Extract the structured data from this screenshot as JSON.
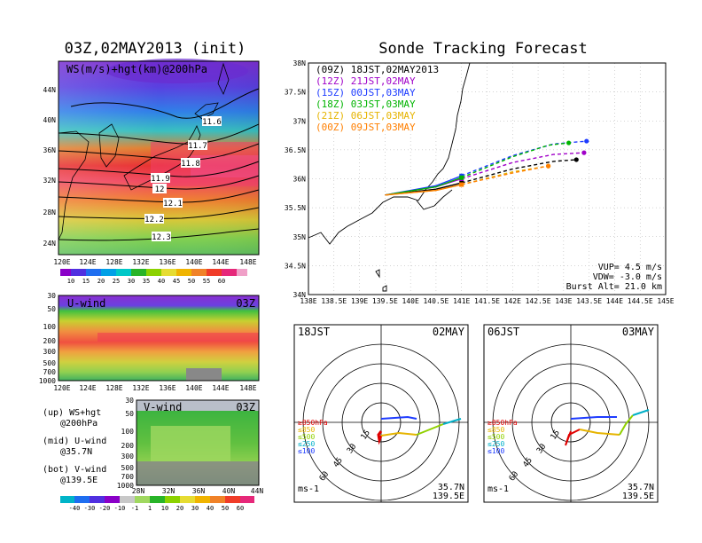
{
  "left_title": "03Z,02MAY2013 (init)",
  "right_title": "Sonde Tracking Forecast",
  "map_panel": {
    "label": "WS(m/s)+hgt(km)@200hPa",
    "lat_ticks": [
      "44N",
      "40N",
      "36N",
      "32N",
      "28N",
      "24N"
    ],
    "lon_ticks": [
      "120E",
      "124E",
      "128E",
      "132E",
      "136E",
      "140E",
      "144E",
      "148E"
    ],
    "contour_labels": [
      "11.6",
      "11.7",
      "11.8",
      "11.9",
      "12",
      "12.1",
      "12.2",
      "12.3"
    ],
    "colorbar_ticks": [
      "10",
      "15",
      "20",
      "25",
      "30",
      "35",
      "40",
      "45",
      "50",
      "55",
      "60"
    ]
  },
  "u_panel": {
    "label": "U-wind",
    "time": "03Z",
    "p_ticks": [
      "30",
      "50",
      "100",
      "200",
      "300",
      "500",
      "700",
      "1000"
    ],
    "lon_ticks": [
      "120E",
      "124E",
      "128E",
      "132E",
      "136E",
      "140E",
      "144E",
      "148E"
    ]
  },
  "v_panel": {
    "label": "V-wind",
    "time": "03Z",
    "p_ticks": [
      "30",
      "50",
      "100",
      "200",
      "300",
      "500",
      "700",
      "1000"
    ],
    "lat_ticks": [
      "28N",
      "32N",
      "36N",
      "40N",
      "44N"
    ],
    "colorbar_ticks": [
      "-40",
      "-30",
      "-20",
      "-10",
      "-1",
      "1",
      "10",
      "20",
      "30",
      "40",
      "50",
      "60"
    ]
  },
  "notes": [
    {
      "a": "(up) WS+hgt",
      "b": "@200hPa"
    },
    {
      "a": "(mid) U-wind",
      "b": "@35.7N"
    },
    {
      "a": "(bot) V-wind",
      "b": "@139.5E"
    }
  ],
  "track_map": {
    "lat_ticks": [
      "38N",
      "37.5N",
      "37N",
      "36.5N",
      "36N",
      "35.5N",
      "35N",
      "34.5N",
      "34N"
    ],
    "lon_ticks": [
      "138E",
      "138.5E",
      "139E",
      "139.5E",
      "140E",
      "140.5E",
      "141E",
      "141.5E",
      "142E",
      "142.5E",
      "143E",
      "143.5E",
      "144E",
      "144.5E",
      "145E"
    ],
    "legend": [
      {
        "label": "(09Z) 18JST,02MAY2013",
        "color": "#000000"
      },
      {
        "label": "(12Z) 21JST,02MAY",
        "color": "#a000c8"
      },
      {
        "label": "(15Z) 00JST,03MAY",
        "color": "#1e3cff"
      },
      {
        "label": "(18Z) 03JST,03MAY",
        "color": "#00b400"
      },
      {
        "label": "(21Z) 06JST,03MAY",
        "color": "#e6b400"
      },
      {
        "label": "(00Z) 09JST,03MAY",
        "color": "#ff7f00"
      }
    ],
    "params": [
      "VUP= 4.5 m/s",
      "VDW= -3.0 m/s",
      "Burst Alt= 21.0 km"
    ]
  },
  "hodographs": [
    {
      "left_label": "18JST",
      "right_label": "02MAY",
      "loc1": "35.7N",
      "loc2": "139.5E",
      "unit": "ms-1"
    },
    {
      "left_label": "06JST",
      "right_label": "03MAY",
      "loc1": "35.7N",
      "loc2": "139.5E",
      "unit": "ms-1"
    }
  ],
  "hodo_rings": [
    "15",
    "30",
    "45",
    "60"
  ],
  "hodo_levels": [
    {
      "label": "≥850hPa",
      "color": "#e00000"
    },
    {
      "label": "≤850",
      "color": "#e6b400"
    },
    {
      "label": "≤500",
      "color": "#90d000"
    },
    {
      "label": "≤250",
      "color": "#00b0c8"
    },
    {
      "label": "≤100",
      "color": "#1e3cff"
    }
  ],
  "chart_data": {
    "type": "line",
    "title": "Sonde Tracking Forecast",
    "xlabel": "",
    "ylabel": "",
    "xlim": [
      138,
      145
    ],
    "ylim": [
      34,
      38
    ],
    "series": [
      {
        "name": "(09Z) 18JST,02MAY2013",
        "color": "#000000",
        "x": [
          139.5,
          140.5,
          141.0,
          142.0,
          142.8,
          143.25
        ],
        "y": [
          35.72,
          35.82,
          35.93,
          36.17,
          36.3,
          36.33
        ]
      },
      {
        "name": "(12Z) 21JST,02MAY",
        "color": "#a000c8",
        "x": [
          139.5,
          140.5,
          141.0,
          142.0,
          142.8,
          143.4
        ],
        "y": [
          35.72,
          35.86,
          36.0,
          36.28,
          36.42,
          36.45
        ]
      },
      {
        "name": "(15Z) 00JST,03MAY",
        "color": "#1e3cff",
        "x": [
          139.5,
          140.5,
          141.0,
          142.0,
          142.8,
          143.45
        ],
        "y": [
          35.72,
          35.88,
          36.05,
          36.4,
          36.6,
          36.65
        ]
      },
      {
        "name": "(18Z) 03JST,03MAY",
        "color": "#00b400",
        "x": [
          139.5,
          140.5,
          141.0,
          142.0,
          142.7,
          143.1
        ],
        "y": [
          35.72,
          35.86,
          36.02,
          36.38,
          36.58,
          36.62
        ]
      },
      {
        "name": "(21Z) 06JST,03MAY",
        "color": "#e6b400",
        "x": [
          139.5,
          140.5,
          141.0,
          142.0,
          142.7
        ],
        "y": [
          35.72,
          35.8,
          35.9,
          36.12,
          36.22
        ]
      },
      {
        "name": "(00Z) 09JST,03MAY",
        "color": "#ff7f00",
        "x": [
          139.5,
          140.5,
          141.0,
          142.0,
          142.7
        ],
        "y": [
          35.72,
          35.8,
          35.9,
          36.1,
          36.22
        ]
      }
    ]
  }
}
